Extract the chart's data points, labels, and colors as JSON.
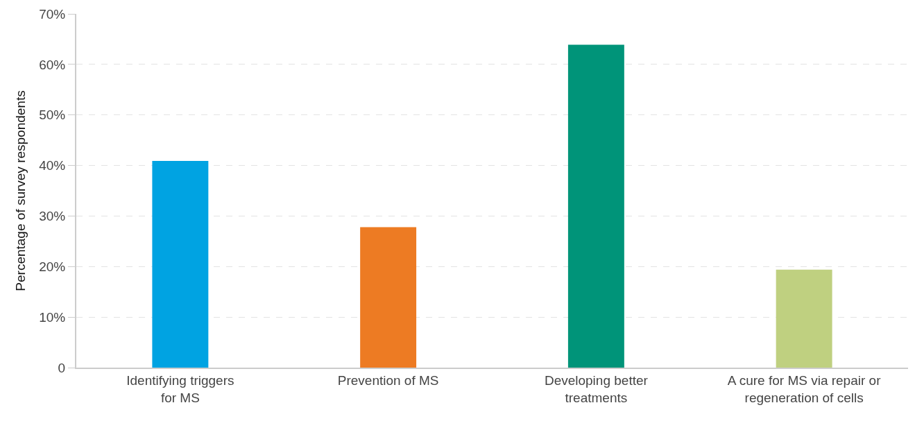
{
  "chart_data": {
    "type": "bar",
    "ylabel": "Percentage of survey respondents",
    "categories": [
      "Identifying triggers\nfor MS",
      "Prevention of MS",
      "Developing better\ntreatments",
      "A cure for MS via repair or\nregeneration of cells"
    ],
    "values": [
      40.9,
      27.8,
      63.9,
      19.4
    ],
    "colors": [
      "#00a3e2",
      "#ed7b23",
      "#009479",
      "#bfd080"
    ],
    "ylim": [
      0,
      70
    ],
    "yticks": [
      0,
      {
        "value": 10,
        "label": "10%"
      },
      {
        "value": 20,
        "label": "20%"
      },
      {
        "value": 30,
        "label": "30%"
      },
      {
        "value": 40,
        "label": "40%"
      },
      {
        "value": 50,
        "label": "50%"
      },
      {
        "value": 60,
        "label": "60%"
      },
      {
        "value": 70,
        "label": "70%"
      }
    ],
    "grid": "y"
  }
}
